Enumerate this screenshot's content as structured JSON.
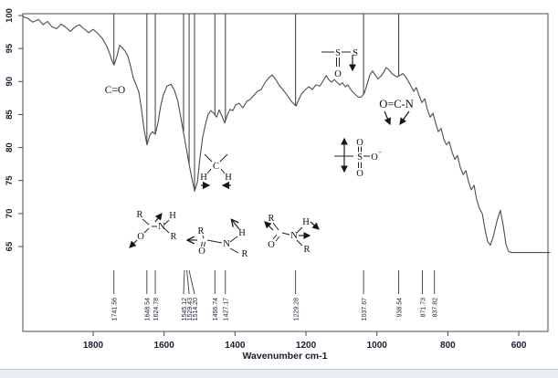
{
  "chart_data": {
    "type": "line",
    "xlabel": "Wavenumber cm-1",
    "x_ticks": [
      1800,
      1600,
      1400,
      1200,
      1000,
      800,
      600
    ],
    "x_axis_range_approx": [
      2000,
      515
    ],
    "y_ticks": [
      100,
      95,
      90,
      85,
      80,
      75,
      70,
      65
    ],
    "y_axis_range_approx": [
      52,
      100.5
    ],
    "ylabel": "",
    "grid": false,
    "legend": "none",
    "line_color": "#4d4d4d",
    "marker_color": "#3a3a3a",
    "text_color": "#1b1b30",
    "peaks": [
      {
        "label": "1741.56",
        "value": 1741.56,
        "top_marker": true,
        "dash_dx": 0
      },
      {
        "label": "1648.54",
        "value": 1648.54,
        "top_marker": true,
        "dash_dx": 0
      },
      {
        "label": "1624.78",
        "value": 1624.78,
        "top_marker": true,
        "dash_dx": 0
      },
      {
        "label": "1545.12",
        "value": 1545.12,
        "top_marker": true,
        "dash_dx": 1
      },
      {
        "label": "1529.43",
        "value": 1529.43,
        "top_marker": true,
        "dash_dx": -2.5
      },
      {
        "label": "1514.20",
        "value": 1514.2,
        "top_marker": true,
        "dash_dx": -6
      },
      {
        "label": "1456.74",
        "value": 1456.74,
        "top_marker": true,
        "dash_dx": 0
      },
      {
        "label": "1427.17",
        "value": 1427.17,
        "top_marker": true,
        "dash_dx": 0
      },
      {
        "label": "1229.28",
        "value": 1229.28,
        "top_marker": true,
        "dash_dx": 0
      },
      {
        "label": "1037.67",
        "value": 1037.67,
        "top_marker": true,
        "dash_dx": 0
      },
      {
        "label": "938.54",
        "value": 938.54,
        "top_marker": true,
        "dash_dx": 0
      },
      {
        "label": "871.73",
        "value": 871.73,
        "top_marker": false,
        "dash_dx": 0
      },
      {
        "label": "837.82",
        "value": 837.82,
        "top_marker": false,
        "dash_dx": 0
      }
    ],
    "curve": [
      [
        1998,
        99.8
      ],
      [
        1985,
        99.6
      ],
      [
        1970,
        99.0
      ],
      [
        1954,
        99.4
      ],
      [
        1941,
        98.6
      ],
      [
        1929,
        99.1
      ],
      [
        1916,
        98.3
      ],
      [
        1903,
        98.0
      ],
      [
        1890,
        98.7
      ],
      [
        1877,
        98.2
      ],
      [
        1864,
        97.6
      ],
      [
        1851,
        98.3
      ],
      [
        1839,
        98.6
      ],
      [
        1826,
        98.0
      ],
      [
        1813,
        97.4
      ],
      [
        1800,
        97.9
      ],
      [
        1787,
        97.3
      ],
      [
        1774,
        96.5
      ],
      [
        1761,
        95.3
      ],
      [
        1754,
        94.3
      ],
      [
        1746,
        93.0
      ],
      [
        1741,
        92.5
      ],
      [
        1733,
        93.8
      ],
      [
        1725,
        95.5
      ],
      [
        1718,
        95.1
      ],
      [
        1710,
        94.6
      ],
      [
        1702,
        93.8
      ],
      [
        1694,
        92.2
      ],
      [
        1687,
        90.6
      ],
      [
        1679,
        89.5
      ],
      [
        1671,
        88.4
      ],
      [
        1664,
        85.9
      ],
      [
        1656,
        82.6
      ],
      [
        1648,
        80.4
      ],
      [
        1640,
        81.9
      ],
      [
        1633,
        82.4
      ],
      [
        1625,
        82.0
      ],
      [
        1617,
        83.8
      ],
      [
        1610,
        86.2
      ],
      [
        1602,
        88.0
      ],
      [
        1592,
        89.3
      ],
      [
        1581,
        89.6
      ],
      [
        1571,
        88.7
      ],
      [
        1561,
        87.0
      ],
      [
        1553,
        84.6
      ],
      [
        1545,
        82.2
      ],
      [
        1537,
        79.8
      ],
      [
        1530,
        77.6
      ],
      [
        1522,
        75.4
      ],
      [
        1514,
        73.4
      ],
      [
        1506,
        74.8
      ],
      [
        1499,
        78.4
      ],
      [
        1491,
        81.6
      ],
      [
        1483,
        83.6
      ],
      [
        1476,
        85.0
      ],
      [
        1468,
        85.6
      ],
      [
        1460,
        85.2
      ],
      [
        1452,
        84.6
      ],
      [
        1445,
        85.7
      ],
      [
        1437,
        84.8
      ],
      [
        1429,
        83.7
      ],
      [
        1422,
        84.9
      ],
      [
        1414,
        85.8
      ],
      [
        1406,
        85.6
      ],
      [
        1398,
        86.5
      ],
      [
        1388,
        86.7
      ],
      [
        1378,
        86.0
      ],
      [
        1367,
        87.0
      ],
      [
        1357,
        87.3
      ],
      [
        1347,
        87.9
      ],
      [
        1337,
        88.5
      ],
      [
        1326,
        88.8
      ],
      [
        1316,
        89.8
      ],
      [
        1306,
        90.5
      ],
      [
        1295,
        91.0
      ],
      [
        1285,
        90.3
      ],
      [
        1275,
        89.4
      ],
      [
        1264,
        88.7
      ],
      [
        1254,
        88.0
      ],
      [
        1244,
        87.2
      ],
      [
        1236,
        86.7
      ],
      [
        1228,
        86.3
      ],
      [
        1221,
        87.2
      ],
      [
        1213,
        88.1
      ],
      [
        1203,
        88.7
      ],
      [
        1192,
        89.2
      ],
      [
        1182,
        88.8
      ],
      [
        1172,
        89.5
      ],
      [
        1161,
        89.3
      ],
      [
        1151,
        90.2
      ],
      [
        1143,
        90.9
      ],
      [
        1136,
        90.3
      ],
      [
        1128,
        89.9
      ],
      [
        1120,
        90.3
      ],
      [
        1113,
        89.9
      ],
      [
        1105,
        89.5
      ],
      [
        1097,
        89.8
      ],
      [
        1089,
        89.2
      ],
      [
        1082,
        89.5
      ],
      [
        1074,
        88.8
      ],
      [
        1066,
        88.3
      ],
      [
        1058,
        87.9
      ],
      [
        1051,
        87.6
      ],
      [
        1043,
        87.7
      ],
      [
        1035,
        88.3
      ],
      [
        1028,
        89.5
      ],
      [
        1020,
        91.0
      ],
      [
        1012,
        91.6
      ],
      [
        1005,
        91.0
      ],
      [
        997,
        90.4
      ],
      [
        989,
        90.8
      ],
      [
        981,
        91.4
      ],
      [
        974,
        92.1
      ],
      [
        966,
        91.8
      ],
      [
        958,
        91.2
      ],
      [
        950,
        90.9
      ],
      [
        943,
        90.7
      ],
      [
        935,
        90.9
      ],
      [
        927,
        91.2
      ],
      [
        919,
        90.7
      ],
      [
        912,
        90.1
      ],
      [
        904,
        89.3
      ],
      [
        896,
        88.5
      ],
      [
        889,
        89.1
      ],
      [
        881,
        87.9
      ],
      [
        873,
        86.8
      ],
      [
        865,
        87.4
      ],
      [
        858,
        85.8
      ],
      [
        850,
        84.6
      ],
      [
        842,
        85.2
      ],
      [
        834,
        83.6
      ],
      [
        827,
        82.4
      ],
      [
        819,
        82.9
      ],
      [
        811,
        81.2
      ],
      [
        804,
        80.4
      ],
      [
        796,
        80.9
      ],
      [
        788,
        79.3
      ],
      [
        780,
        78.2
      ],
      [
        773,
        78.8
      ],
      [
        765,
        77.0
      ],
      [
        757,
        75.9
      ],
      [
        749,
        76.5
      ],
      [
        742,
        74.9
      ],
      [
        734,
        73.6
      ],
      [
        726,
        74.3
      ],
      [
        719,
        72.2
      ],
      [
        711,
        70.8
      ],
      [
        703,
        70.0
      ],
      [
        695,
        67.5
      ],
      [
        688,
        65.8
      ],
      [
        680,
        65.2
      ],
      [
        672,
        66.5
      ],
      [
        662,
        68.8
      ],
      [
        652,
        70.5
      ],
      [
        644,
        68.2
      ],
      [
        636,
        65.3
      ],
      [
        629,
        64.3
      ],
      [
        621,
        64.1
      ],
      [
        513,
        64.1
      ]
    ]
  },
  "annotations": {
    "co": {
      "text": "C=O"
    },
    "ocn": {
      "text": "O=C-N"
    },
    "disulfide": {
      "s1": "S",
      "s2": "S",
      "o": "O"
    },
    "sulfate": {
      "o_top": "O",
      "s": "S",
      "o_bottom": "O",
      "o_right": "O",
      "charge": "−"
    },
    "ch2": {
      "c": "C",
      "h_left": "H",
      "h_right": "H"
    },
    "amide1": {
      "r_top": "R",
      "o": "O",
      "n": "N",
      "h": "H",
      "r_right": "R"
    },
    "amide2": {
      "r_top": "R",
      "o": "O",
      "n": "N",
      "h": "H",
      "r_bottom": "R"
    },
    "amide3": {
      "r_top": "R",
      "o": "O",
      "n": "N",
      "h": "H",
      "r_bottom": "R"
    }
  }
}
